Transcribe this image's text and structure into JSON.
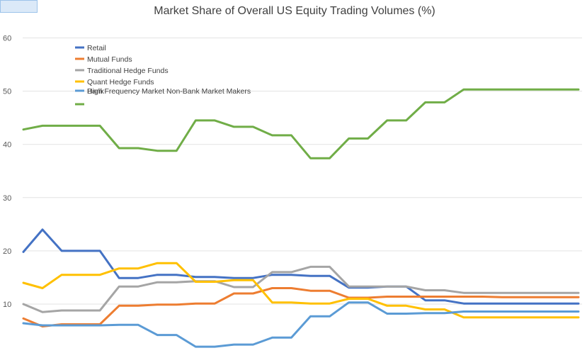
{
  "chart_data": {
    "type": "line",
    "title": "Market Share of Overall US Equity Trading Volumes (%)",
    "xlabel": "",
    "ylabel": "",
    "ylim": [
      6,
      60
    ],
    "yticks": [
      10,
      20,
      30,
      40,
      50,
      60
    ],
    "grid": true,
    "legend_position": "top-left",
    "x": [
      0,
      1,
      2,
      3,
      4,
      5,
      6,
      7,
      8,
      9,
      10,
      11,
      12,
      13,
      14,
      15,
      16,
      17,
      18,
      19,
      20,
      21,
      22,
      23,
      24,
      25,
      26,
      27,
      28,
      29
    ],
    "series": [
      {
        "name": "Retail",
        "color": "#4472c4",
        "values": [
          19.8,
          24,
          20,
          20,
          20,
          14.9,
          14.9,
          15.5,
          15.5,
          15.1,
          15.1,
          14.9,
          14.9,
          15.5,
          15.5,
          15.3,
          15.3,
          13.1,
          13.1,
          13.3,
          13.3,
          10.7,
          10.7,
          10.1,
          10.1,
          10.1,
          10.1,
          10.1,
          10.1,
          10.1
        ]
      },
      {
        "name": "Mutual Funds",
        "color": "#ed7d31",
        "values": [
          7.3,
          5.8,
          6.2,
          6.2,
          6.2,
          9.7,
          9.7,
          9.9,
          9.9,
          10.1,
          10.1,
          12,
          12,
          13,
          13,
          12.5,
          12.5,
          11.2,
          11.2,
          11.4,
          11.4,
          11.4,
          11.4,
          11.4,
          11.4,
          11.3,
          11.3,
          11.3,
          11.3,
          11.3
        ]
      },
      {
        "name": "Traditional Hedge Funds",
        "color": "#a5a5a5",
        "values": [
          10,
          8.5,
          8.8,
          8.8,
          8.8,
          13.3,
          13.3,
          14.1,
          14.1,
          14.3,
          14.3,
          13.2,
          13.2,
          16,
          16,
          17,
          17,
          13.3,
          13.3,
          13.3,
          13.3,
          12.6,
          12.6,
          12.1,
          12.1,
          12.1,
          12.1,
          12.1,
          12.1,
          12.1
        ]
      },
      {
        "name": "Quant Hedge Funds",
        "color": "#ffc000",
        "values": [
          14,
          13,
          15.5,
          15.5,
          15.5,
          16.7,
          16.7,
          17.7,
          17.7,
          14.2,
          14.2,
          14.5,
          14.5,
          10.3,
          10.3,
          10.1,
          10.1,
          11,
          11,
          9.7,
          9.7,
          9,
          9,
          7.5,
          7.5,
          7.5,
          7.5,
          7.5,
          7.5,
          7.5
        ]
      },
      {
        "name": "High Frequency Market Non-Bank Market Makers",
        "color": "#5b9bd5",
        "values": [
          6.4,
          6,
          6,
          6,
          6,
          6.1,
          6.1,
          4.2,
          4.2,
          2,
          2,
          2.4,
          2.4,
          3.7,
          3.7,
          7.7,
          7.7,
          10.3,
          10.3,
          8.2,
          8.2,
          8.3,
          8.3,
          8.6,
          8.6,
          8.6,
          8.6,
          8.6,
          8.6,
          8.6
        ]
      },
      {
        "name": "Bank",
        "color": "#70ad47",
        "values": [
          42.8,
          43.5,
          43.5,
          43.5,
          43.5,
          39.3,
          39.3,
          38.8,
          38.8,
          44.5,
          44.5,
          43.3,
          43.3,
          41.7,
          41.7,
          37.4,
          37.4,
          41.1,
          41.1,
          44.5,
          44.5,
          47.9,
          47.9,
          50.3,
          50.3,
          50.3,
          50.3,
          50.3,
          50.3,
          50.3
        ]
      }
    ]
  }
}
